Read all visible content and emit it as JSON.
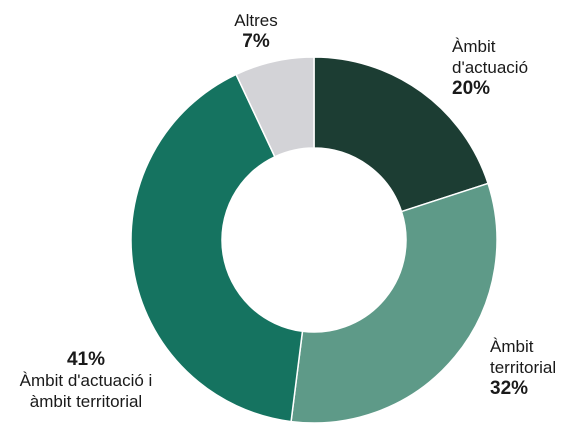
{
  "chart_data": {
    "type": "pie",
    "donut": true,
    "title": "",
    "slices": [
      {
        "label": "Àmbit d'actuació",
        "value": 20,
        "value_label": "20%",
        "color": "#1c3d33"
      },
      {
        "label": "Àmbit territorial",
        "value": 32,
        "value_label": "32%",
        "color": "#5e9a88"
      },
      {
        "label": "Àmbit d'actuació i àmbit territorial",
        "value": 41,
        "value_label": "41%",
        "color": "#157360"
      },
      {
        "label": "Altres",
        "value": 7,
        "value_label": "7%",
        "color": "#d3d3d7"
      }
    ],
    "labels": [
      {
        "name_lines": [
          "Àmbit",
          "d'actuació"
        ],
        "pct": "20%",
        "pct_first": false
      },
      {
        "name_lines": [
          "Àmbit",
          "territorial"
        ],
        "pct": "32%",
        "pct_first": false
      },
      {
        "name_lines": [
          "Àmbit d'actuació i",
          "àmbit territorial"
        ],
        "pct": "41%",
        "pct_first": true
      },
      {
        "name_lines": [
          "Altres"
        ],
        "pct": "7%",
        "pct_first": false
      }
    ]
  }
}
